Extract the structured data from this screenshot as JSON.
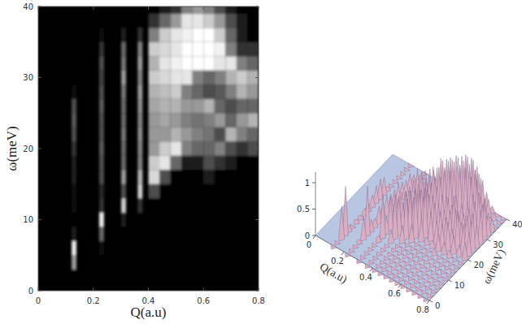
{
  "chart_data": [
    {
      "type": "heatmap",
      "xlabel": "Q(a.u)",
      "ylabel": "ω(meV)",
      "xlim": [
        0,
        0.8
      ],
      "ylim": [
        0,
        40
      ],
      "xticks": [
        0,
        0.2,
        0.4,
        0.6,
        0.8
      ],
      "yticks": [
        0,
        10,
        20,
        30,
        40
      ],
      "x": [
        0.13,
        0.23,
        0.31,
        0.37,
        0.42,
        0.46,
        0.5,
        0.54,
        0.58,
        0.62,
        0.66,
        0.7,
        0.74,
        0.78
      ],
      "y": [
        0,
        2,
        4,
        6,
        8,
        10,
        12,
        14,
        16,
        18,
        20,
        22,
        24,
        26,
        28,
        30,
        32,
        34,
        36,
        38,
        40
      ],
      "values": [
        [
          0,
          0,
          0.6,
          0.9,
          0.1,
          0,
          0.05,
          0.05,
          0.1,
          0.1,
          0.2,
          0.3,
          0.35,
          0.3,
          0.05,
          0,
          0,
          0,
          0,
          0,
          0
        ],
        [
          0,
          0,
          0,
          0.05,
          0.4,
          0.9,
          0.2,
          0.15,
          0.3,
          0.3,
          0.35,
          0.3,
          0.3,
          0.35,
          0.3,
          0.25,
          0.3,
          0.2,
          0.05,
          0,
          0
        ],
        [
          0,
          0,
          0,
          0,
          0,
          0.1,
          0.8,
          0.3,
          0.6,
          0.4,
          0.4,
          0.45,
          0.4,
          0.4,
          0.45,
          0.6,
          0.45,
          0.4,
          0.1,
          0,
          0
        ],
        [
          0,
          0,
          0,
          0,
          0,
          0,
          0.2,
          0.8,
          0.7,
          0.5,
          0.5,
          0.55,
          0.5,
          0.55,
          0.6,
          0.5,
          0.6,
          0.5,
          0.2,
          0,
          0
        ],
        [
          0,
          0,
          0,
          0,
          0,
          0,
          0,
          0.3,
          0.85,
          0.8,
          0.6,
          0.6,
          0.6,
          0.65,
          0.7,
          0.8,
          0.7,
          0.8,
          0.5,
          0.2,
          0
        ],
        [
          0,
          0,
          0,
          0,
          0,
          0,
          0,
          0,
          0.3,
          0.9,
          0.8,
          0.6,
          0.65,
          0.7,
          0.75,
          0.85,
          0.9,
          0.85,
          0.8,
          0.4,
          0.1
        ],
        [
          0,
          0,
          0,
          0,
          0,
          0,
          0,
          0,
          0,
          0.4,
          0.9,
          0.7,
          0.6,
          0.7,
          0.8,
          0.9,
          0.95,
          0.9,
          0.9,
          0.6,
          0.2
        ],
        [
          0,
          0,
          0,
          0,
          0,
          0,
          0,
          0,
          0,
          0.1,
          0.5,
          0.6,
          0.5,
          0.6,
          0.5,
          0.9,
          1,
          1,
          0.95,
          0.9,
          0.5
        ],
        [
          0,
          0,
          0,
          0,
          0,
          0,
          0,
          0,
          0,
          0.1,
          0.4,
          0.5,
          0.45,
          0.6,
          0.4,
          0.5,
          1,
          1,
          1,
          0.9,
          0.6
        ],
        [
          0,
          0,
          0,
          0,
          0,
          0,
          0,
          0,
          0.1,
          0.3,
          0.4,
          0.45,
          0.5,
          0.7,
          0.3,
          0.4,
          1,
          1,
          1,
          0.8,
          0.5
        ],
        [
          0,
          0,
          0,
          0,
          0,
          0,
          0,
          0,
          0,
          0.2,
          0.5,
          0.3,
          0.6,
          0.4,
          0.35,
          0.5,
          0.9,
          0.95,
          0.8,
          0.6,
          0.3
        ],
        [
          0,
          0,
          0,
          0,
          0,
          0,
          0,
          0,
          0,
          0.1,
          0.3,
          0.7,
          0.4,
          0.3,
          0.5,
          0.7,
          0.9,
          0.5,
          0.4,
          0.3,
          0.1
        ],
        [
          0,
          0,
          0,
          0,
          0,
          0,
          0,
          0,
          0,
          0,
          0.2,
          0.5,
          0.6,
          0.4,
          0.7,
          0.8,
          0.5,
          0.2,
          0.1,
          0.1,
          0
        ],
        [
          0,
          0,
          0,
          0,
          0,
          0,
          0,
          0,
          0,
          0,
          0.3,
          0.4,
          0.7,
          0.4,
          0.6,
          0.7,
          0.4,
          0.2,
          0,
          0,
          0
        ]
      ]
    },
    {
      "type": "surface",
      "xlabel": "Q(a.u)",
      "ylabel": "ω(meV)",
      "xlim": [
        0,
        0.8
      ],
      "ylim": [
        0,
        40
      ],
      "zlim": [
        0,
        1.2
      ],
      "xticks": [
        0,
        0.2,
        0.4,
        0.6,
        0.8
      ],
      "yticks": [
        0,
        10,
        20,
        30,
        40
      ],
      "zticks": [
        0,
        0.5,
        1
      ],
      "color": "#d9aec2",
      "x": [
        0.13,
        0.23,
        0.31,
        0.37,
        0.42,
        0.46,
        0.5,
        0.54,
        0.58,
        0.62,
        0.66,
        0.7,
        0.74,
        0.78
      ],
      "y": [
        0,
        2,
        4,
        6,
        8,
        10,
        12,
        14,
        16,
        18,
        20,
        22,
        24,
        26,
        28,
        30,
        32,
        34,
        36,
        38,
        40
      ],
      "values": [
        [
          0,
          0,
          0.6,
          0.9,
          0.1,
          0,
          0.05,
          0.05,
          0.1,
          0.1,
          0.2,
          0.3,
          0.35,
          0.3,
          0.05,
          0,
          0,
          0,
          0,
          0,
          0
        ],
        [
          0,
          0,
          0,
          0.05,
          0.4,
          0.9,
          0.2,
          0.15,
          0.3,
          0.3,
          0.35,
          0.3,
          0.3,
          0.35,
          0.3,
          0.25,
          0.3,
          0.2,
          0.05,
          0,
          0
        ],
        [
          0,
          0,
          0,
          0,
          0,
          0.1,
          0.8,
          0.3,
          0.6,
          0.4,
          0.4,
          0.45,
          0.4,
          0.4,
          0.45,
          0.6,
          0.45,
          0.4,
          0.1,
          0,
          0
        ],
        [
          0,
          0,
          0,
          0,
          0,
          0,
          0.2,
          0.8,
          0.7,
          0.5,
          0.5,
          0.55,
          0.5,
          0.55,
          0.6,
          0.5,
          0.6,
          0.5,
          0.2,
          0,
          0
        ],
        [
          0,
          0,
          0,
          0,
          0,
          0,
          0,
          0.3,
          0.85,
          0.8,
          0.6,
          0.6,
          0.6,
          0.65,
          0.7,
          0.8,
          0.7,
          0.8,
          0.5,
          0.2,
          0
        ],
        [
          0,
          0,
          0,
          0,
          0,
          0,
          0,
          0,
          0.3,
          0.9,
          0.8,
          0.6,
          0.65,
          0.7,
          0.75,
          0.85,
          0.9,
          0.85,
          0.8,
          0.4,
          0.1
        ],
        [
          0,
          0,
          0,
          0,
          0,
          0,
          0,
          0,
          0,
          0.4,
          0.9,
          0.7,
          0.6,
          0.7,
          0.8,
          0.9,
          0.95,
          0.9,
          0.9,
          0.6,
          0.2
        ],
        [
          0,
          0,
          0,
          0,
          0,
          0,
          0,
          0,
          0,
          0.1,
          0.5,
          0.6,
          0.5,
          0.6,
          0.5,
          0.9,
          1,
          1,
          0.95,
          0.9,
          0.5
        ],
        [
          0,
          0,
          0,
          0,
          0,
          0,
          0,
          0,
          0,
          0.1,
          0.4,
          0.5,
          0.45,
          0.6,
          0.4,
          0.5,
          1,
          1,
          1,
          0.9,
          0.6
        ],
        [
          0,
          0,
          0,
          0,
          0,
          0,
          0,
          0,
          0.1,
          0.3,
          0.4,
          0.45,
          0.5,
          0.7,
          0.3,
          0.4,
          1,
          1,
          1,
          0.8,
          0.5
        ],
        [
          0,
          0,
          0,
          0,
          0,
          0,
          0,
          0,
          0,
          0.2,
          0.5,
          0.3,
          0.6,
          0.4,
          0.35,
          0.5,
          0.9,
          0.95,
          0.8,
          0.6,
          0.3
        ],
        [
          0,
          0,
          0,
          0,
          0,
          0,
          0,
          0,
          0,
          0.1,
          0.3,
          0.7,
          0.4,
          0.3,
          0.5,
          0.7,
          0.9,
          0.5,
          0.4,
          0.3,
          0.1
        ],
        [
          0,
          0,
          0,
          0,
          0,
          0,
          0,
          0,
          0,
          0,
          0.2,
          0.5,
          0.6,
          0.4,
          0.7,
          0.8,
          0.5,
          0.2,
          0.1,
          0.1,
          0
        ],
        [
          0,
          0,
          0,
          0,
          0,
          0,
          0,
          0,
          0,
          0,
          0.3,
          0.4,
          0.7,
          0.4,
          0.6,
          0.7,
          0.4,
          0.2,
          0,
          0,
          0
        ]
      ]
    }
  ]
}
